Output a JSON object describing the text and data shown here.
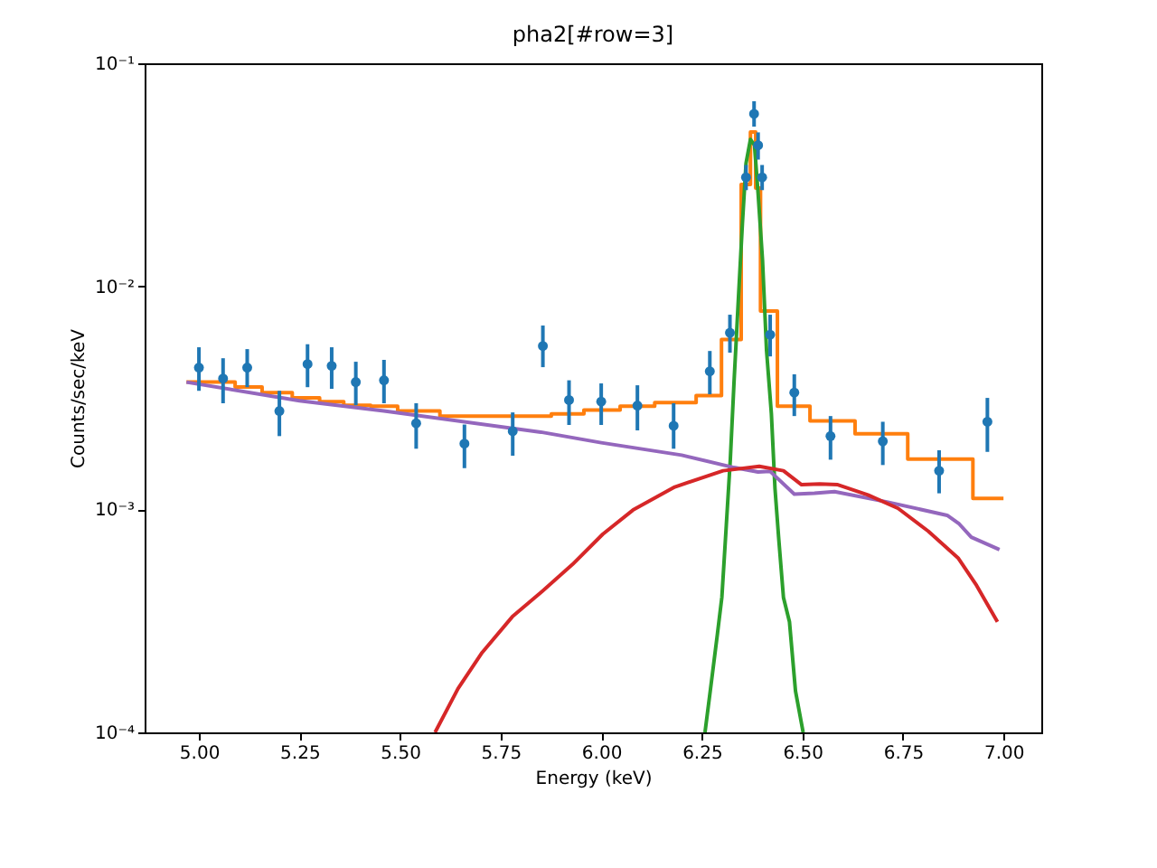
{
  "chart_data": {
    "type": "line",
    "title": "pha2[#row=3]",
    "xlabel": "Energy (keV)",
    "ylabel": "Counts/sec/keV",
    "xlim": [
      4.865,
      7.094
    ],
    "ylim": [
      0.0001,
      0.1
    ],
    "log": "y",
    "grid": false,
    "xticks": [
      {
        "value": 5,
        "label": "5.00"
      },
      {
        "value": 5.25,
        "label": "5.25"
      },
      {
        "value": 5.5,
        "label": "5.50"
      },
      {
        "value": 5.75,
        "label": "5.75"
      },
      {
        "value": 6,
        "label": "6.00"
      },
      {
        "value": 6.25,
        "label": "6.25"
      },
      {
        "value": 6.5,
        "label": "6.50"
      },
      {
        "value": 6.75,
        "label": "6.75"
      },
      {
        "value": 7,
        "label": "7.00"
      }
    ],
    "yticks": [
      {
        "value": 0.0001,
        "label": "10⁻⁴"
      },
      {
        "value": 0.001,
        "label": "10⁻³"
      },
      {
        "value": 0.01,
        "label": "10⁻²"
      },
      {
        "value": 0.1,
        "label": "10⁻¹"
      }
    ],
    "series": [
      {
        "type": "scatter",
        "color": "#1f77b4",
        "marker": "circle",
        "x": [
          5.0,
          5.06,
          5.12,
          5.2,
          5.27,
          5.33,
          5.39,
          5.46,
          5.54,
          5.66,
          5.78,
          5.855,
          5.92,
          6.0,
          6.09,
          6.18,
          6.27,
          6.32,
          6.36,
          6.38,
          6.39,
          6.4,
          6.42,
          6.48,
          6.57,
          6.7,
          6.84,
          6.96
        ],
        "values": [
          0.00432,
          0.00386,
          0.00432,
          0.00276,
          0.00448,
          0.0044,
          0.00372,
          0.00379,
          0.00243,
          0.00197,
          0.00224,
          0.0054,
          0.00309,
          0.00304,
          0.00292,
          0.00237,
          0.00416,
          0.00619,
          0.0308,
          0.0593,
          0.0429,
          0.0308,
          0.00607,
          0.00334,
          0.00213,
          0.00202,
          0.00149,
          0.00247
        ],
        "errors": [
          [
            0.0034,
            0.00533
          ],
          [
            0.00299,
            0.00476
          ],
          [
            0.00353,
            0.00523
          ],
          [
            0.00213,
            0.0034
          ],
          [
            0.00353,
            0.0055
          ],
          [
            0.00347,
            0.00533
          ],
          [
            0.00293,
            0.00459
          ],
          [
            0.00299,
            0.00468
          ],
          [
            0.00187,
            0.00299
          ],
          [
            0.00153,
            0.0024
          ],
          [
            0.00174,
            0.00272
          ],
          [
            0.00434,
            0.00667
          ],
          [
            0.00239,
            0.00379
          ],
          [
            0.00239,
            0.00367
          ],
          [
            0.00226,
            0.0036
          ],
          [
            0.00187,
            0.00299
          ],
          [
            0.00328,
            0.00513
          ],
          [
            0.00504,
            0.00746
          ],
          [
            0.027,
            0.035
          ],
          [
            0.052,
            0.0676
          ],
          [
            0.037,
            0.049
          ],
          [
            0.027,
            0.035
          ],
          [
            0.00485,
            0.00746
          ],
          [
            0.00262,
            0.00403
          ],
          [
            0.00167,
            0.00262
          ],
          [
            0.00158,
            0.00247
          ],
          [
            0.00118,
            0.00184
          ],
          [
            0.00181,
            0.00316
          ]
        ]
      },
      {
        "type": "step",
        "color": "#ff7f0e",
        "x": [
          4.969,
          5.09,
          5.157,
          5.232,
          5.3,
          5.36,
          5.427,
          5.494,
          5.599,
          5.876,
          5.957,
          6.047,
          6.133,
          6.236,
          6.299,
          6.348,
          6.371,
          6.384,
          6.396,
          6.438,
          6.519,
          6.631,
          6.762,
          6.924,
          7.0
        ],
        "values": [
          0.00372,
          0.00354,
          0.00334,
          0.00316,
          0.00304,
          0.00293,
          0.0029,
          0.00276,
          0.00262,
          0.00268,
          0.00279,
          0.0029,
          0.00301,
          0.00324,
          0.00578,
          0.0286,
          0.0492,
          0.0276,
          0.00775,
          0.0029,
          0.00249,
          0.00218,
          0.00168,
          0.00112,
          0.00112
        ]
      },
      {
        "color": "#2ca02c",
        "x": [
          6.258,
          6.271,
          6.289,
          6.3,
          6.311,
          6.321,
          6.33,
          6.341,
          6.351,
          6.36,
          6.371,
          6.381,
          6.39,
          6.401,
          6.411,
          6.423,
          6.432,
          6.441,
          6.453,
          6.468,
          6.483,
          6.502
        ],
        "values": [
          0.0001,
          0.000153,
          0.000277,
          0.000405,
          0.00085,
          0.00168,
          0.00367,
          0.00877,
          0.0191,
          0.0356,
          0.0456,
          0.0429,
          0.0261,
          0.0131,
          0.00516,
          0.00269,
          0.00124,
          0.00075,
          0.000403,
          0.000313,
          0.000153,
          0.0001
        ]
      },
      {
        "color": "#9467bd",
        "x": [
          4.969,
          5.25,
          5.46,
          5.85,
          6.0,
          6.2,
          6.33,
          6.39,
          6.42,
          6.48,
          6.53,
          6.58,
          6.71,
          6.86,
          6.89,
          6.92,
          6.99
        ],
        "values": [
          0.00372,
          0.00307,
          0.00276,
          0.00222,
          0.00199,
          0.00175,
          0.00154,
          0.00147,
          0.00148,
          0.00117,
          0.00118,
          0.0012,
          0.00108,
          0.00094,
          0.00086,
          0.00075,
          0.00066
        ]
      },
      {
        "color": "#d62728",
        "x": [
          5.587,
          5.644,
          5.704,
          5.779,
          5.854,
          5.929,
          6.004,
          6.079,
          6.183,
          6.303,
          6.393,
          6.453,
          6.498,
          6.543,
          6.588,
          6.663,
          6.738,
          6.813,
          6.888,
          6.933,
          6.985
        ],
        "values": [
          0.0001,
          0.000157,
          0.000228,
          0.00033,
          0.00043,
          0.000567,
          0.000774,
          0.000993,
          0.00126,
          0.00149,
          0.00156,
          0.00149,
          0.00129,
          0.0013,
          0.00129,
          0.00116,
          0.00101,
          0.000798,
          0.000603,
          0.000456,
          0.000313
        ]
      }
    ]
  }
}
